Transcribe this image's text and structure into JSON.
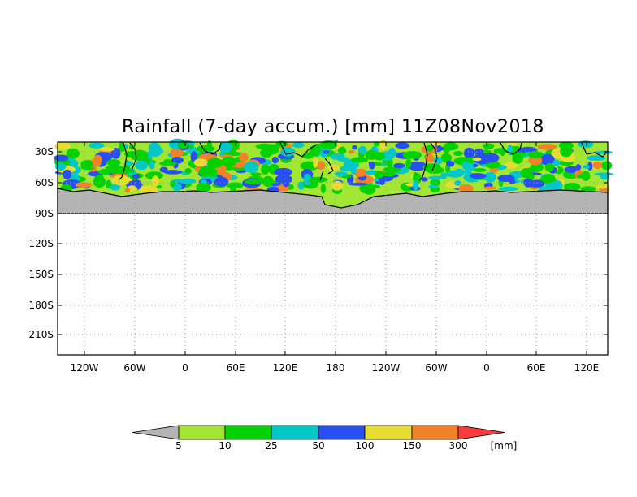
{
  "map": {
    "title": "Rainfall (7-day accum.) [mm] 11Z08Nov2018",
    "lat_labels": [
      "30S",
      "60S",
      "90S",
      "120S",
      "150S",
      "180S",
      "210S"
    ],
    "lon_labels": [
      "120W",
      "60W",
      "0",
      "60E",
      "120E",
      "180",
      "120W",
      "60W",
      "0",
      "60E",
      "120E"
    ],
    "grid": "dotted",
    "land_mask_color": "#b4b4b4",
    "coastline_color": "#000000"
  },
  "colorbar": {
    "unit_label": "[mm]",
    "thresholds": [
      "5",
      "10",
      "25",
      "50",
      "100",
      "150",
      "300"
    ],
    "colors": [
      "#b4b4b4",
      "#a0e632",
      "#00d200",
      "#00c8c8",
      "#2850f0",
      "#e6dc32",
      "#f08228",
      "#fa3c3c"
    ]
  }
}
